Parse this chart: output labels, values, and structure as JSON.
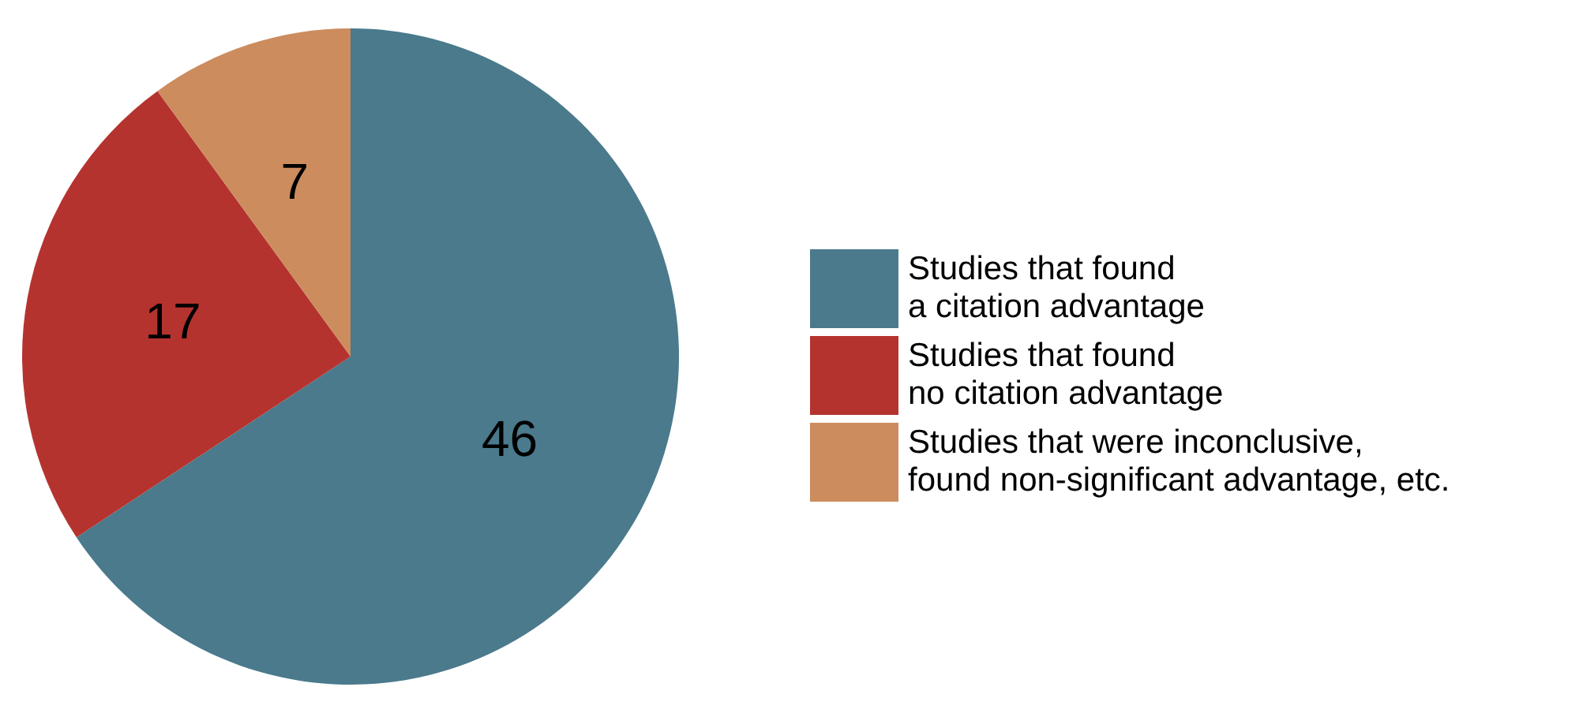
{
  "chart_data": {
    "type": "pie",
    "categories": [
      "Studies that found\na citation advantage",
      "Studies that found\nno citation advantage",
      "Studies that were inconclusive,\nfound non-significant advantage, etc."
    ],
    "values": [
      46,
      17,
      7
    ],
    "colors": [
      "#4a7a8c",
      "#b5332e",
      "#cc8c5e"
    ],
    "data_labels": true,
    "legend": "right"
  }
}
